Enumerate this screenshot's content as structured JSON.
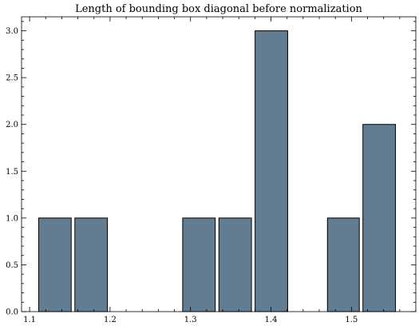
{
  "chart_data": {
    "type": "bar",
    "title": "Length of bounding box diagonal before normalization",
    "xlabel": "",
    "ylabel": "",
    "xlim": [
      1.09,
      1.58
    ],
    "ylim": [
      0,
      3.15
    ],
    "x_ticks": [
      1.1,
      1.2,
      1.3,
      1.4,
      1.5
    ],
    "x_tick_labels": [
      "1.1",
      "1.2",
      "1.3",
      "1.4",
      "1.5"
    ],
    "y_ticks": [
      0,
      0.5,
      1,
      1.5,
      2,
      2.5,
      3
    ],
    "y_tick_labels": [
      "0.0",
      "0.5",
      "1.0",
      "1.5",
      "2.0",
      "2.5",
      "3.0"
    ],
    "bins": [
      {
        "x0": 1.109,
        "x1": 1.154,
        "count": 1
      },
      {
        "x0": 1.154,
        "x1": 1.199,
        "count": 1
      },
      {
        "x0": 1.199,
        "x1": 1.243,
        "count": 0
      },
      {
        "x0": 1.243,
        "x1": 1.288,
        "count": 0
      },
      {
        "x0": 1.288,
        "x1": 1.333,
        "count": 1
      },
      {
        "x0": 1.333,
        "x1": 1.378,
        "count": 1
      },
      {
        "x0": 1.378,
        "x1": 1.423,
        "count": 3
      },
      {
        "x0": 1.423,
        "x1": 1.468,
        "count": 0
      },
      {
        "x0": 1.468,
        "x1": 1.512,
        "count": 1
      },
      {
        "x0": 1.512,
        "x1": 1.557,
        "count": 2
      }
    ],
    "bar_color": "#627d91",
    "grid": false,
    "legend": "none"
  }
}
